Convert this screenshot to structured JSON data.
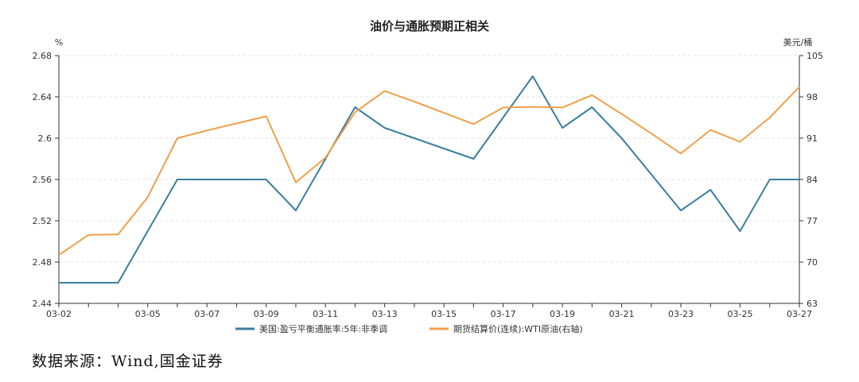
{
  "chart_data": {
    "type": "line",
    "title": "油价与通胀预期正相关",
    "left_unit": "%",
    "right_unit": "美元/桶",
    "x": [
      "03-02",
      "03-03",
      "03-04",
      "03-05",
      "03-06",
      "03-07",
      "03-08",
      "03-09",
      "03-10",
      "03-11",
      "03-12",
      "03-13",
      "03-14",
      "03-15",
      "03-16",
      "03-17",
      "03-18",
      "03-19",
      "03-20",
      "03-21",
      "03-22",
      "03-23",
      "03-24",
      "03-25",
      "03-26",
      "03-27"
    ],
    "x_tick_labels": [
      "03-02",
      "03-05",
      "03-07",
      "03-09",
      "03-11",
      "03-13",
      "03-15",
      "03-17",
      "03-19",
      "03-21",
      "03-23",
      "03-25",
      "03-27"
    ],
    "y_left": {
      "ticks": [
        "2.44",
        "2.48",
        "2.52",
        "2.56",
        "2.6",
        "2.64",
        "2.68"
      ],
      "range": [
        2.44,
        2.68
      ]
    },
    "y_right": {
      "ticks": [
        "63",
        "70",
        "77",
        "84",
        "91",
        "98",
        "105"
      ],
      "range": [
        63,
        105
      ]
    },
    "grid": true,
    "legend_position": "bottom",
    "series": [
      {
        "name": "美国:盈亏平衡通胀率:5年:非季调",
        "axis": "left",
        "color": "#3a7ea0",
        "values": [
          2.46,
          2.46,
          2.46,
          2.51,
          2.56,
          2.56,
          2.56,
          2.56,
          2.53,
          2.58,
          2.63,
          2.61,
          2.6,
          2.59,
          2.58,
          2.62,
          2.66,
          2.61,
          2.63,
          2.6,
          2.565,
          2.53,
          2.55,
          2.51,
          2.56,
          2.56
        ]
      },
      {
        "name": "期货结算价(连续):WTI原油(右轴)",
        "axis": "right",
        "color": "#f0a04a",
        "values": [
          71.2,
          74.6,
          74.7,
          81.0,
          91.0,
          92.3,
          93.5,
          94.7,
          83.5,
          87.7,
          95.4,
          99.0,
          97.2,
          95.3,
          93.4,
          96.2,
          96.3,
          96.2,
          98.3,
          95.1,
          91.8,
          88.4,
          92.4,
          90.4,
          94.5,
          99.7
        ]
      }
    ]
  },
  "footer": {
    "source": "数据来源：Wind,国金证券"
  }
}
